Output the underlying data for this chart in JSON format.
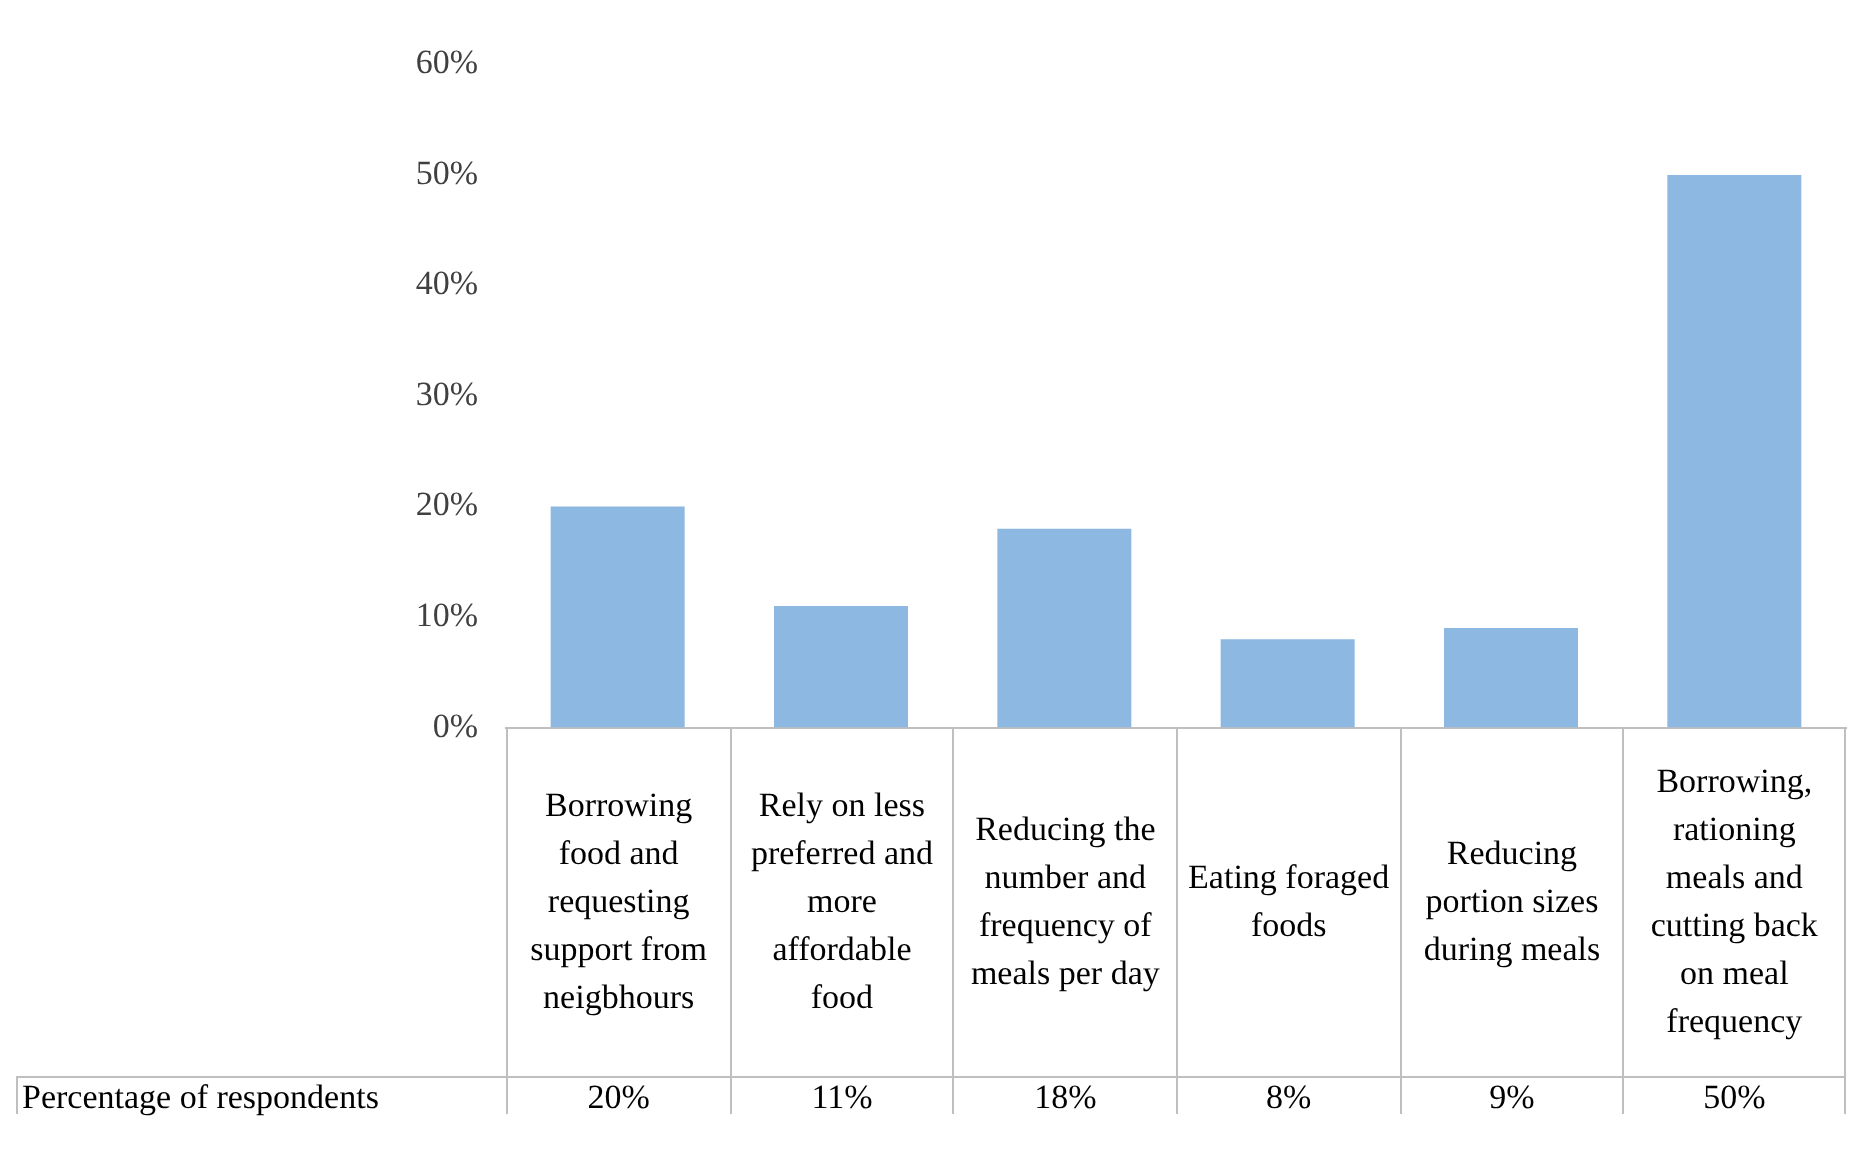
{
  "chart_data": {
    "type": "bar",
    "categories": [
      "Borrowing food and requesting support from neigbhours",
      "Rely on less preferred and more affordable food",
      "Reducing the number and frequency of meals per day",
      "Eating foraged foods",
      "Reducing portion sizes during meals",
      "Borrowing, rationing meals and cutting back on meal frequency"
    ],
    "series": [
      {
        "name": "Percentage of respondents",
        "color": "#8db8e2",
        "values": [
          20,
          11,
          18,
          8,
          9,
          50
        ],
        "value_labels": [
          "20%",
          "11%",
          "18%",
          "8%",
          "9%",
          "50%"
        ]
      }
    ],
    "ylim": [
      0,
      60
    ],
    "yticks": [
      {
        "value": 0,
        "label": "0%"
      },
      {
        "value": 10,
        "label": "10%"
      },
      {
        "value": 20,
        "label": "20%"
      },
      {
        "value": 30,
        "label": "30%"
      },
      {
        "value": 40,
        "label": "40%"
      },
      {
        "value": 50,
        "label": "50%"
      },
      {
        "value": 60,
        "label": "60%"
      }
    ],
    "grid": false
  }
}
